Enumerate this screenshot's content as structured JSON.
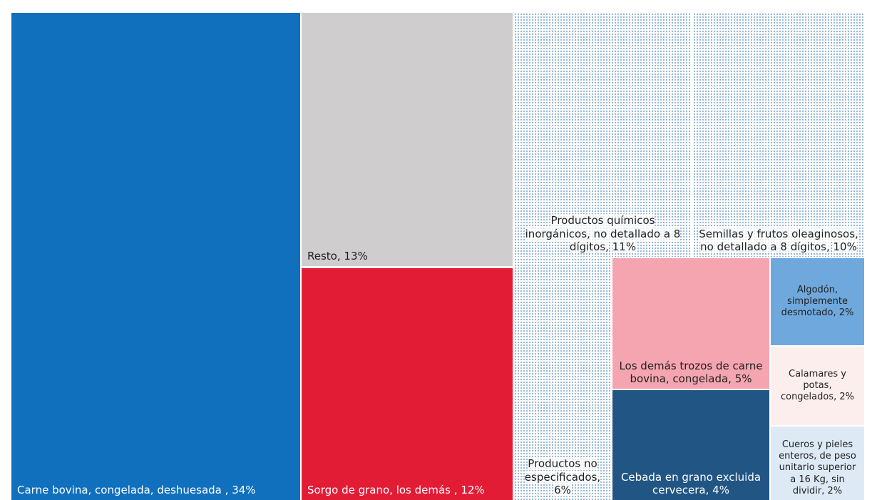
{
  "chart_data": {
    "type": "treemap",
    "categories": [
      "Carne bovina, congelada, deshuesada ,",
      "Resto,",
      "Sorgo de grano, los demás ,",
      "Productos químicos inorgánicos, no detallado a 8 dígitos,",
      "Semillas y frutos oleaginosos, no detallado a 8 dígitos,",
      "Productos no especificados,",
      "Los demás trozos de carne bovina, congelada,",
      "Cebada en grano excluida cervecera,",
      "Algodón, simplemente desmotado,",
      "Calamares y potas, congelados,",
      "Cueros y pieles enteros, de peso unitario superior a 16 Kg, sin dividir,"
    ],
    "values": [
      34,
      13,
      12,
      11,
      10,
      6,
      5,
      4,
      2,
      2,
      2
    ],
    "value_labels": [
      "34%",
      "13%",
      "12%",
      "11%",
      "10%",
      "6%",
      "5%",
      "4%",
      "2%",
      "2%",
      "2%"
    ],
    "colors": [
      "#1170bd",
      "#cfcdce",
      "#e31c36",
      "#8fb2d4",
      "#8fb2d4",
      "#8fb2d4",
      "#f4a5b0",
      "#215584",
      "#6fa8dc",
      "#fdeeee",
      "#ddeaf6"
    ],
    "patterned": [
      false,
      false,
      false,
      true,
      true,
      true,
      false,
      false,
      false,
      false,
      false
    ]
  }
}
